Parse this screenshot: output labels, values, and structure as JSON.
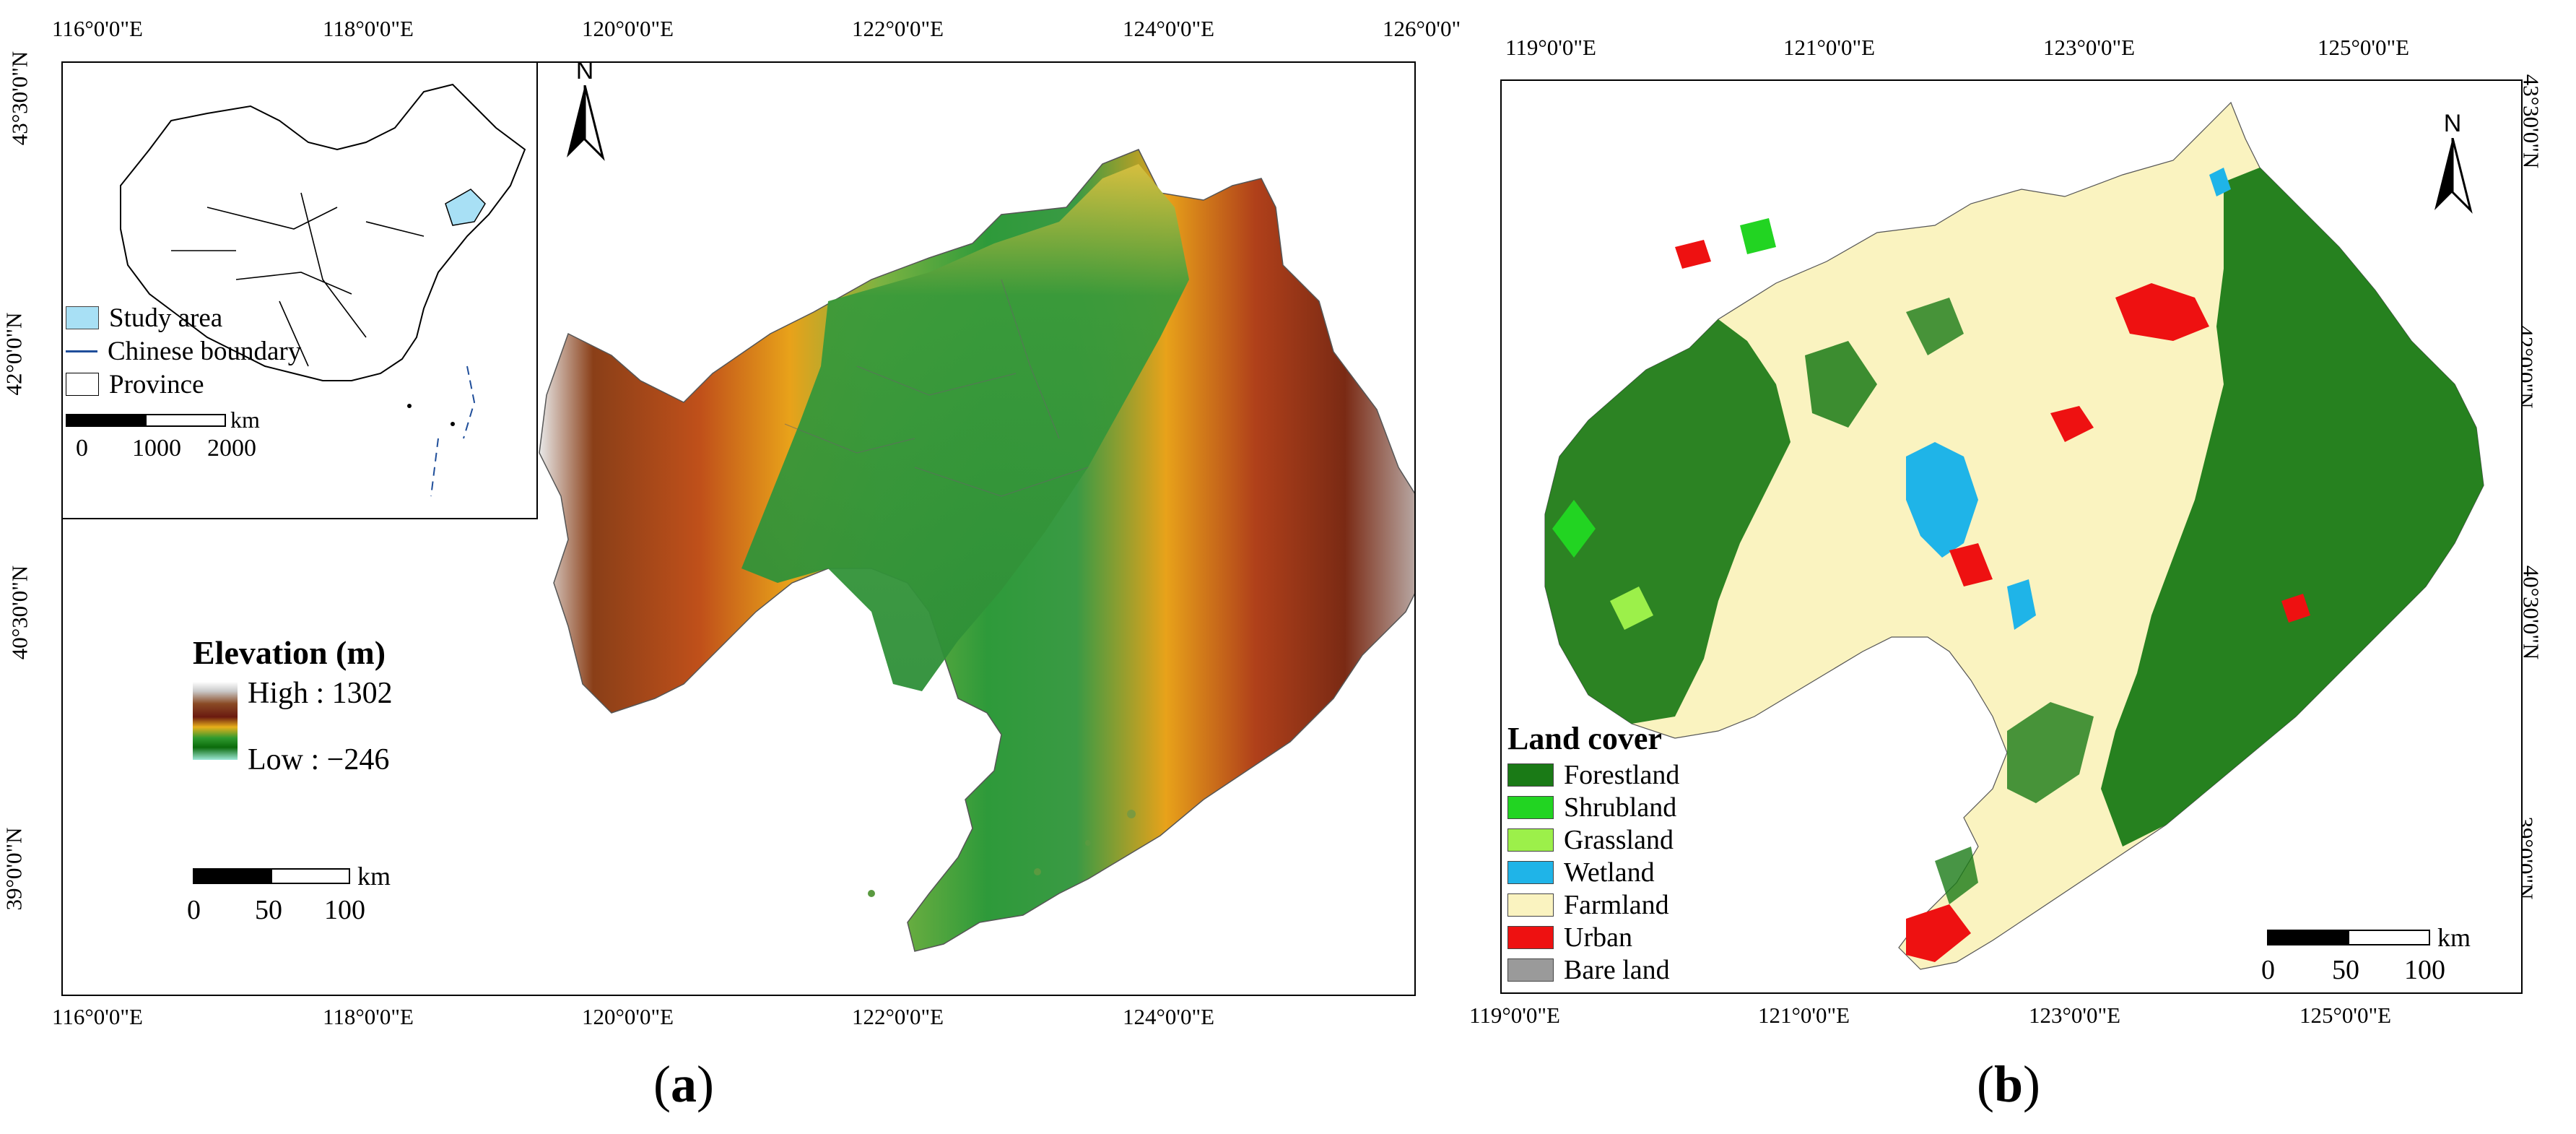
{
  "panel_a": {
    "caption_letter": "a",
    "top_ticks": [
      "116°0'0\"E",
      "118°0'0\"E",
      "120°0'0\"E",
      "122°0'0\"E",
      "124°0'0\"E",
      "126°0'0\""
    ],
    "bottom_ticks": [
      "116°0'0\"E",
      "118°0'0\"E",
      "120°0'0\"E",
      "122°0'0\"E",
      "124°0'0\"E"
    ],
    "left_ticks": [
      "43°30'0\"N",
      "42°0'0\"N",
      "40°30'0\"N",
      "39°0'0\"N"
    ],
    "north_label": "N",
    "inset": {
      "legend": [
        {
          "label": "Study area",
          "color": "#a8e0f5"
        },
        {
          "label": "Chinese boundary",
          "color": "#1f4e9a"
        },
        {
          "label": "Province",
          "color": "#ffffff"
        }
      ],
      "scale_unit": "km",
      "scale_labels": [
        "0",
        "1000",
        "2000"
      ]
    },
    "elevation_legend": {
      "title": "Elevation (m)",
      "high": "High : 1302",
      "low": "Low : −246"
    },
    "scale_unit": "km",
    "scale_labels": [
      "0",
      "50",
      "100"
    ]
  },
  "panel_b": {
    "caption_letter": "b",
    "top_ticks": [
      "119°0'0\"E",
      "121°0'0\"E",
      "123°0'0\"E",
      "125°0'0\"E"
    ],
    "bottom_ticks": [
      "119°0'0\"E",
      "121°0'0\"E",
      "123°0'0\"E",
      "125°0'0\"E"
    ],
    "right_ticks": [
      "43°30'0\"N",
      "42°0'0\"N",
      "40°30'0\"N",
      "39°0'0\"N"
    ],
    "north_label": "N",
    "landcover_legend": {
      "title": "Land cover",
      "items": [
        {
          "label": "Forestland",
          "color": "#1a7a16"
        },
        {
          "label": "Shrubland",
          "color": "#22d422"
        },
        {
          "label": "Grassland",
          "color": "#9cf04a"
        },
        {
          "label": "Wetland",
          "color": "#1fb4e8"
        },
        {
          "label": "Farmland",
          "color": "#faf3c0"
        },
        {
          "label": "Urban",
          "color": "#ee1111"
        },
        {
          "label": "Bare land",
          "color": "#9a9a9a"
        }
      ]
    },
    "scale_unit": "km",
    "scale_labels": [
      "0",
      "50",
      "100"
    ]
  }
}
